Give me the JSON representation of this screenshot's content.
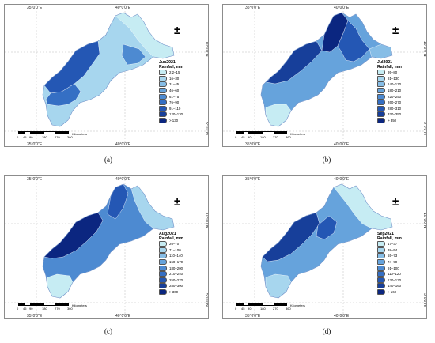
{
  "figure": {
    "panels": [
      {
        "caption": "(a)",
        "month": "Jun2021",
        "legend_title": "Rainfall, mm",
        "classes": [
          "2.2–15",
          "16–30",
          "31–45",
          "46–60",
          "61–75",
          "76–90",
          "91–110",
          "120–130",
          "> 130"
        ]
      },
      {
        "caption": "(b)",
        "month": "Jul2021",
        "legend_title": "Rainfall, mm",
        "classes": [
          "95–80",
          "81–130",
          "140–170",
          "180–210",
          "220–250",
          "260–270",
          "280–310",
          "320–350",
          "> 350"
        ]
      },
      {
        "caption": "(c)",
        "month": "Aug2021",
        "legend_title": "Rainfall, mm",
        "classes": [
          "26–70",
          "71–100",
          "110–140",
          "150–170",
          "180–200",
          "210–240",
          "250–270",
          "280–300",
          "> 300"
        ]
      },
      {
        "caption": "(d)",
        "month": "Sep2021",
        "legend_title": "Rainfall, mm",
        "classes": [
          "17–37",
          "38–54",
          "55–73",
          "74–90",
          "91–100",
          "110–120",
          "130–130",
          "140–160",
          "> 160"
        ]
      }
    ],
    "axis_labels": {
      "lon_left": "35°0'0\"E",
      "lon_right": "40°0'0\"E",
      "lat_top": "10°0'0\"N",
      "lat_bottom": "5°0'0\"N"
    },
    "scale": {
      "ticks": [
        "0",
        "45",
        "90",
        "180",
        "270",
        "360"
      ],
      "unit": "Kilometers"
    },
    "north_arrow": "±",
    "legend_colors": [
      "#c6ecf3",
      "#a7d6ee",
      "#86bde6",
      "#66a3dc",
      "#4d8ad1",
      "#356fc4",
      "#2457b4",
      "#173f9a",
      "#0b2680"
    ]
  }
}
